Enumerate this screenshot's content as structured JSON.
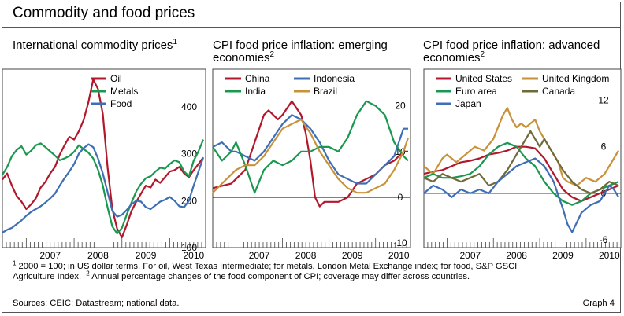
{
  "title": "Commodity and food prices",
  "panels": {
    "left": {
      "title": "International commodity prices",
      "sup": "1"
    },
    "middle": {
      "title_line1": "CPI food price inflation: emerging",
      "title_line2": "economies",
      "sup": "2"
    },
    "right": {
      "title_line1": "CPI food price inflation: advanced",
      "title_line2": "economies",
      "sup": "2"
    }
  },
  "footnotes": {
    "note1_mark": "1",
    "note1_text": " 2000 = 100; in US dollar terms. For oil, West Texas Intermediate; for metals, London Metal Exchange index; for food, S&P GSCI",
    "note1_cont": "Agriculture Index.",
    "note2_mark": "2",
    "note2_text": " Annual percentage changes of the food component of CPI; coverage may differ across countries."
  },
  "sources": "Sources: CEIC; Datastream; national data.",
  "graph_label": "Graph 4",
  "colors": {
    "red": "#b2182b",
    "green": "#1a9850",
    "blue": "#3e6fb5",
    "gold": "#c8923a",
    "olive": "#6f6a3a"
  },
  "chart_data": [
    {
      "type": "line",
      "title": "International commodity prices",
      "xlim": [
        2006.5,
        2010.75
      ],
      "x_ticks": [
        "2007",
        "2008",
        "2009",
        "2010"
      ],
      "x_tick_values": [
        2007,
        2008,
        2009,
        2010
      ],
      "ylim": [
        100,
        480
      ],
      "y_ticks": [
        100,
        200,
        300,
        400
      ],
      "y_axis": "right",
      "legend": "top-left",
      "series": [
        {
          "name": "Oil",
          "color": "#b2182b",
          "x": [
            2006.5,
            2006.6,
            2006.7,
            2006.8,
            2006.9,
            2007.0,
            2007.1,
            2007.2,
            2007.3,
            2007.4,
            2007.5,
            2007.6,
            2007.7,
            2007.8,
            2007.9,
            2008.0,
            2008.1,
            2008.2,
            2008.3,
            2008.4,
            2008.5,
            2008.6,
            2008.7,
            2008.8,
            2008.9,
            2009.0,
            2009.1,
            2009.2,
            2009.3,
            2009.4,
            2009.5,
            2009.6,
            2009.7,
            2009.8,
            2009.9,
            2010.0,
            2010.1,
            2010.2,
            2010.3,
            2010.4,
            2010.5,
            2010.6,
            2010.7
          ],
          "y": [
            245,
            258,
            232,
            210,
            198,
            182,
            192,
            205,
            228,
            240,
            258,
            272,
            298,
            318,
            336,
            330,
            348,
            372,
            410,
            458,
            438,
            385,
            270,
            182,
            140,
            122,
            148,
            178,
            198,
            215,
            232,
            228,
            245,
            238,
            250,
            262,
            265,
            272,
            258,
            250,
            265,
            278,
            292
          ]
        },
        {
          "name": "Metals",
          "color": "#1a9850",
          "x": [
            2006.5,
            2006.6,
            2006.7,
            2006.8,
            2006.9,
            2007.0,
            2007.1,
            2007.2,
            2007.3,
            2007.4,
            2007.5,
            2007.6,
            2007.7,
            2007.8,
            2007.9,
            2008.0,
            2008.1,
            2008.2,
            2008.3,
            2008.4,
            2008.5,
            2008.6,
            2008.7,
            2008.8,
            2008.9,
            2009.0,
            2009.1,
            2009.2,
            2009.3,
            2009.4,
            2009.5,
            2009.6,
            2009.7,
            2009.8,
            2009.9,
            2010.0,
            2010.1,
            2010.2,
            2010.3,
            2010.4,
            2010.5,
            2010.6,
            2010.7
          ],
          "y": [
            255,
            272,
            295,
            308,
            316,
            298,
            306,
            318,
            322,
            314,
            305,
            296,
            286,
            290,
            295,
            304,
            318,
            310,
            302,
            290,
            266,
            232,
            185,
            145,
            130,
            142,
            170,
            196,
            220,
            236,
            248,
            252,
            262,
            270,
            268,
            278,
            286,
            282,
            262,
            252,
            285,
            305,
            330
          ]
        },
        {
          "name": "Food",
          "color": "#3e6fb5",
          "x": [
            2006.5,
            2006.6,
            2006.7,
            2006.8,
            2006.9,
            2007.0,
            2007.1,
            2007.2,
            2007.3,
            2007.4,
            2007.5,
            2007.6,
            2007.7,
            2007.8,
            2007.9,
            2008.0,
            2008.1,
            2008.2,
            2008.3,
            2008.4,
            2008.5,
            2008.6,
            2008.7,
            2008.8,
            2008.9,
            2009.0,
            2009.1,
            2009.2,
            2009.3,
            2009.4,
            2009.5,
            2009.6,
            2009.7,
            2009.8,
            2009.9,
            2010.0,
            2010.1,
            2010.2,
            2010.3,
            2010.4,
            2010.5,
            2010.6,
            2010.7
          ],
          "y": [
            132,
            138,
            142,
            150,
            158,
            168,
            176,
            182,
            188,
            196,
            205,
            215,
            232,
            248,
            262,
            278,
            300,
            312,
            320,
            314,
            290,
            258,
            218,
            178,
            166,
            170,
            180,
            192,
            200,
            198,
            186,
            182,
            190,
            198,
            202,
            208,
            200,
            188,
            186,
            200,
            232,
            262,
            292
          ]
        }
      ]
    },
    {
      "type": "line",
      "title": "CPI food price inflation: emerging economies",
      "xlim": [
        2006.5,
        2010.75
      ],
      "x_ticks": [
        "2007",
        "2008",
        "2009",
        "2010"
      ],
      "x_tick_values": [
        2007,
        2008,
        2009,
        2010
      ],
      "ylim": [
        -11,
        28
      ],
      "y_ticks": [
        -10,
        0,
        10,
        20
      ],
      "y_axis": "right",
      "zero_line": true,
      "legend": "top",
      "series": [
        {
          "name": "China",
          "color": "#b2182b",
          "x": [
            2006.5,
            2006.7,
            2006.9,
            2007.0,
            2007.2,
            2007.4,
            2007.6,
            2007.7,
            2007.8,
            2007.9,
            2008.0,
            2008.2,
            2008.4,
            2008.5,
            2008.6,
            2008.7,
            2008.8,
            2008.9,
            2009.0,
            2009.2,
            2009.4,
            2009.6,
            2009.8,
            2010.0,
            2010.2,
            2010.4,
            2010.6,
            2010.7
          ],
          "y": [
            2,
            2.5,
            3,
            4,
            6,
            12,
            18,
            19,
            18,
            17,
            18,
            21,
            18,
            14,
            8,
            0,
            -2,
            -1,
            -1,
            -1,
            0,
            3,
            4,
            5,
            7,
            8,
            10,
            10
          ]
        },
        {
          "name": "Indonesia",
          "color": "#3e6fb5",
          "x": [
            2006.5,
            2006.7,
            2006.9,
            2007.0,
            2007.2,
            2007.4,
            2007.6,
            2007.8,
            2008.0,
            2008.2,
            2008.4,
            2008.6,
            2008.8,
            2008.9,
            2009.0,
            2009.2,
            2009.4,
            2009.6,
            2009.8,
            2010.0,
            2010.2,
            2010.4,
            2010.6,
            2010.7
          ],
          "y": [
            11,
            12,
            10,
            10,
            9,
            8,
            10,
            13,
            16,
            18,
            17,
            15,
            12,
            10,
            8,
            5,
            4,
            3,
            3,
            5,
            7,
            9,
            15,
            15
          ]
        },
        {
          "name": "India",
          "color": "#1a9850",
          "x": [
            2006.5,
            2006.7,
            2006.9,
            2007.0,
            2007.2,
            2007.4,
            2007.6,
            2007.8,
            2008.0,
            2008.2,
            2008.4,
            2008.6,
            2008.8,
            2009.0,
            2009.2,
            2009.4,
            2009.6,
            2009.8,
            2010.0,
            2010.2,
            2010.4,
            2010.6,
            2010.7
          ],
          "y": [
            11,
            8,
            10,
            12,
            7,
            1,
            6,
            8,
            7,
            8,
            10,
            10,
            11,
            11,
            10,
            13,
            18,
            21,
            20,
            18,
            12,
            9,
            8
          ]
        },
        {
          "name": "Brazil",
          "color": "#c8923a",
          "x": [
            2006.5,
            2006.7,
            2006.9,
            2007.0,
            2007.2,
            2007.4,
            2007.6,
            2007.8,
            2008.0,
            2008.2,
            2008.4,
            2008.6,
            2008.8,
            2009.0,
            2009.2,
            2009.4,
            2009.6,
            2009.8,
            2010.0,
            2010.2,
            2010.4,
            2010.6,
            2010.7
          ],
          "y": [
            1,
            3,
            5,
            6,
            7,
            7,
            9,
            12,
            15,
            16,
            17,
            14,
            10,
            7,
            4,
            2,
            1,
            1,
            2,
            3,
            6,
            10,
            13
          ]
        }
      ]
    },
    {
      "type": "line",
      "title": "CPI food price inflation: advanced economies",
      "xlim": [
        2006.5,
        2010.75
      ],
      "x_ticks": [
        "2007",
        "2008",
        "2009",
        "2010"
      ],
      "x_tick_values": [
        2007,
        2008,
        2009,
        2010
      ],
      "ylim": [
        -7,
        16
      ],
      "y_ticks": [
        -6,
        0,
        6,
        12
      ],
      "y_axis": "right",
      "zero_line": true,
      "legend": "top",
      "series": [
        {
          "name": "United States",
          "color": "#b2182b",
          "x": [
            2006.5,
            2006.7,
            2006.9,
            2007.1,
            2007.3,
            2007.5,
            2007.7,
            2007.9,
            2008.1,
            2008.3,
            2008.5,
            2008.7,
            2008.9,
            2009.1,
            2009.3,
            2009.5,
            2009.7,
            2009.9,
            2010.1,
            2010.3,
            2010.5,
            2010.7
          ],
          "y": [
            2.5,
            2.8,
            3.0,
            3.5,
            4.0,
            4.2,
            4.5,
            5.0,
            5.2,
            5.5,
            6.0,
            6.0,
            5.8,
            4.5,
            2.5,
            0.5,
            -0.5,
            -1.0,
            -0.5,
            0.0,
            0.5,
            1.0
          ]
        },
        {
          "name": "United Kingdom",
          "color": "#c8923a",
          "x": [
            2006.5,
            2006.7,
            2006.9,
            2007.0,
            2007.2,
            2007.4,
            2007.6,
            2007.8,
            2008.0,
            2008.2,
            2008.3,
            2008.4,
            2008.5,
            2008.6,
            2008.7,
            2008.8,
            2008.9,
            2009.0,
            2009.2,
            2009.4,
            2009.5,
            2009.6,
            2009.8,
            2010.0,
            2010.2,
            2010.4,
            2010.6,
            2010.7
          ],
          "y": [
            3.5,
            2.5,
            4.5,
            5.0,
            4.0,
            5.0,
            6.0,
            5.5,
            7.0,
            10.0,
            11.0,
            9.5,
            8.5,
            9.0,
            8.5,
            9.0,
            9.5,
            8.0,
            6.0,
            4.0,
            2.0,
            1.5,
            1.0,
            2.0,
            1.5,
            2.5,
            4.5,
            5.5
          ]
        },
        {
          "name": "Euro area",
          "color": "#1a9850",
          "x": [
            2006.5,
            2006.7,
            2006.9,
            2007.1,
            2007.3,
            2007.5,
            2007.7,
            2007.9,
            2008.1,
            2008.3,
            2008.5,
            2008.7,
            2008.9,
            2009.1,
            2009.3,
            2009.5,
            2009.7,
            2009.9,
            2010.1,
            2010.3,
            2010.5,
            2010.7
          ],
          "y": [
            2.0,
            2.5,
            2.0,
            2.0,
            2.2,
            2.5,
            3.5,
            5.0,
            6.0,
            6.5,
            6.0,
            4.5,
            3.5,
            1.5,
            0.0,
            -1.0,
            -1.5,
            -1.0,
            0.0,
            0.5,
            1.0,
            1.5
          ]
        },
        {
          "name": "Canada",
          "color": "#6f6a3a",
          "x": [
            2006.5,
            2006.7,
            2006.9,
            2007.1,
            2007.3,
            2007.5,
            2007.7,
            2007.9,
            2008.1,
            2008.3,
            2008.5,
            2008.7,
            2008.8,
            2008.9,
            2009.0,
            2009.1,
            2009.3,
            2009.5,
            2009.7,
            2009.9,
            2010.1,
            2010.3,
            2010.5,
            2010.7
          ],
          "y": [
            2.0,
            1.5,
            2.5,
            2.0,
            1.5,
            2.0,
            2.5,
            1.0,
            1.5,
            3.0,
            5.0,
            7.0,
            8.0,
            7.0,
            6.0,
            7.0,
            5.0,
            3.0,
            1.5,
            0.5,
            0.0,
            0.5,
            1.5,
            1.0
          ]
        },
        {
          "name": "Japan",
          "color": "#3e6fb5",
          "x": [
            2006.5,
            2006.7,
            2006.9,
            2007.1,
            2007.3,
            2007.5,
            2007.7,
            2007.9,
            2008.1,
            2008.3,
            2008.5,
            2008.7,
            2008.9,
            2009.1,
            2009.3,
            2009.5,
            2009.6,
            2009.7,
            2009.9,
            2010.1,
            2010.3,
            2010.5,
            2010.6,
            2010.7
          ],
          "y": [
            0.0,
            1.0,
            0.5,
            -0.5,
            0.5,
            0.0,
            0.5,
            0.0,
            1.5,
            2.5,
            3.5,
            4.0,
            4.5,
            3.5,
            1.5,
            -2.0,
            -4.0,
            -5.0,
            -2.5,
            -1.5,
            -1.0,
            1.0,
            0.5,
            -0.5
          ]
        }
      ]
    }
  ]
}
